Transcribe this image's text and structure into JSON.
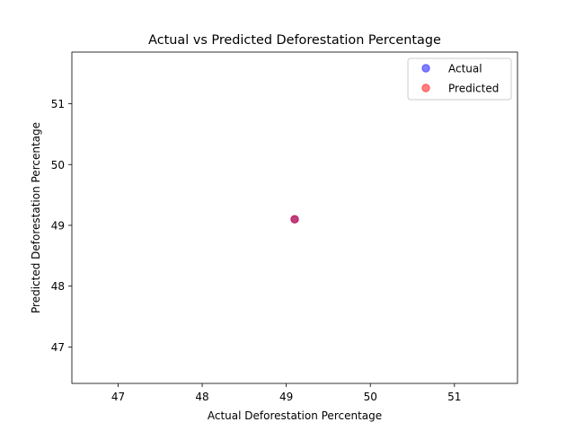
{
  "chart_data": {
    "type": "scatter",
    "title": "Actual vs Predicted Deforestation Percentage",
    "xlabel": "Actual Deforestation Percentage",
    "ylabel": "Predicted Deforestation Percentage",
    "xlim": [
      46.45,
      51.75
    ],
    "ylim": [
      46.4,
      51.85
    ],
    "xticks": [
      47,
      48,
      49,
      50,
      51
    ],
    "yticks": [
      47,
      48,
      49,
      50,
      51
    ],
    "grid": false,
    "legend_position": "top-right",
    "series": [
      {
        "name": "Actual",
        "color": "#0000ff",
        "alpha": 0.5,
        "points": [
          {
            "x": 49.1,
            "y": 49.1
          }
        ]
      },
      {
        "name": "Predicted",
        "color": "#ff0000",
        "alpha": 0.5,
        "points": [
          {
            "x": 49.1,
            "y": 49.1
          }
        ]
      }
    ]
  }
}
